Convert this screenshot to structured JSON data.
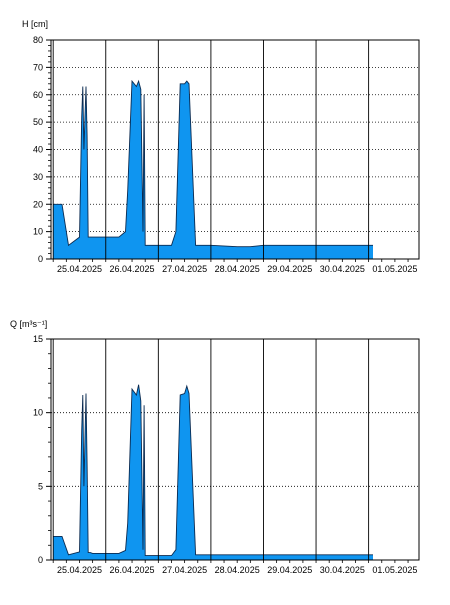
{
  "colors": {
    "fill": "#0f95f0",
    "outline": "#0a2a50",
    "axis": "#000000",
    "grid": "#000000"
  },
  "chart_data": [
    {
      "type": "area",
      "ylabel": "H [cm]",
      "ylim": [
        0,
        80
      ],
      "yticks": [
        "0",
        "10",
        "20",
        "30",
        "40",
        "50",
        "60",
        "70",
        "80"
      ],
      "xlim": [
        "2025-04-24T23:00",
        "2025-05-01T23:00"
      ],
      "xticks": [
        {
          "date": "2025-04-25T12:00",
          "label": "25.04.2025"
        },
        {
          "date": "2025-04-26T12:00",
          "label": "26.04.2025"
        },
        {
          "date": "2025-04-27T12:00",
          "label": "27.04.2025"
        },
        {
          "date": "2025-04-28T12:00",
          "label": "28.04.2025"
        },
        {
          "date": "2025-04-29T12:00",
          "label": "29.04.2025"
        },
        {
          "date": "2025-04-30T12:00",
          "label": "30.04.2025"
        },
        {
          "date": "2025-05-01T12:00",
          "label": "01.05.2025"
        }
      ],
      "grid": "vertical solid at day boundaries, horizontal dotted",
      "series": [
        {
          "x": [
            "2025-04-25T00:00",
            "2025-04-25T04:00",
            "2025-04-25T07:00",
            "2025-04-25T12:00",
            "2025-04-25T13:00",
            "2025-04-25T13:30",
            "2025-04-25T14:00",
            "2025-04-25T15:00",
            "2025-04-25T15:30",
            "2025-04-25T16:00",
            "2025-04-25T17:00",
            "2025-04-25T18:00",
            "2025-04-26T00:00",
            "2025-04-26T06:00",
            "2025-04-26T09:00",
            "2025-04-26T10:00",
            "2025-04-26T12:00",
            "2025-04-26T14:00",
            "2025-04-26T15:00",
            "2025-04-26T16:00",
            "2025-04-26T17:00",
            "2025-04-26T17:30",
            "2025-04-26T18:00",
            "2025-04-26T20:00",
            "2025-04-27T00:00",
            "2025-04-27T04:00",
            "2025-04-27T06:00",
            "2025-04-27T08:00",
            "2025-04-27T10:00",
            "2025-04-27T12:00",
            "2025-04-27T13:00",
            "2025-04-27T14:00",
            "2025-04-27T17:00",
            "2025-04-28T00:00",
            "2025-04-28T12:00",
            "2025-04-28T18:00",
            "2025-04-29T00:00",
            "2025-04-29T12:00",
            "2025-04-30T00:00",
            "2025-04-30T12:00",
            "2025-05-01T00:00",
            "2025-05-01T02:00"
          ],
          "values": [
            20,
            20,
            5,
            8,
            52,
            63,
            40,
            63,
            45,
            8,
            8,
            8,
            8,
            8,
            10,
            25,
            65,
            63,
            65,
            62,
            10,
            60,
            5,
            5,
            5,
            5,
            5,
            10,
            64,
            64,
            65,
            64,
            5,
            5,
            4.5,
            4.5,
            5,
            5,
            5,
            5,
            5,
            5
          ]
        }
      ]
    },
    {
      "type": "area",
      "ylabel": "Q [m³s⁻¹]",
      "ylim": [
        0,
        15
      ],
      "yticks": [
        "0",
        "5",
        "10",
        "15"
      ],
      "xlim": [
        "2025-04-24T23:00",
        "2025-05-01T23:00"
      ],
      "xticks": [
        {
          "date": "2025-04-25T12:00",
          "label": "25.04.2025"
        },
        {
          "date": "2025-04-26T12:00",
          "label": "26.04.2025"
        },
        {
          "date": "2025-04-27T12:00",
          "label": "27.04.2025"
        },
        {
          "date": "2025-04-28T12:00",
          "label": "28.04.2025"
        },
        {
          "date": "2025-04-29T12:00",
          "label": "29.04.2025"
        },
        {
          "date": "2025-04-30T12:00",
          "label": "30.04.2025"
        },
        {
          "date": "2025-05-01T12:00",
          "label": "01.05.2025"
        }
      ],
      "grid": "vertical solid at day boundaries, horizontal dotted",
      "series": [
        {
          "x": [
            "2025-04-25T00:00",
            "2025-04-25T04:00",
            "2025-04-25T07:00",
            "2025-04-25T12:00",
            "2025-04-25T13:00",
            "2025-04-25T13:30",
            "2025-04-25T14:00",
            "2025-04-25T15:00",
            "2025-04-25T15:30",
            "2025-04-25T16:00",
            "2025-04-25T17:00",
            "2025-04-25T18:00",
            "2025-04-26T00:00",
            "2025-04-26T06:00",
            "2025-04-26T09:00",
            "2025-04-26T10:00",
            "2025-04-26T12:00",
            "2025-04-26T14:00",
            "2025-04-26T15:00",
            "2025-04-26T16:00",
            "2025-04-26T17:00",
            "2025-04-26T17:30",
            "2025-04-26T18:00",
            "2025-04-26T20:00",
            "2025-04-27T00:00",
            "2025-04-27T04:00",
            "2025-04-27T06:00",
            "2025-04-27T08:00",
            "2025-04-27T10:00",
            "2025-04-27T12:00",
            "2025-04-27T13:00",
            "2025-04-27T14:00",
            "2025-04-27T17:00",
            "2025-04-28T00:00",
            "2025-04-28T12:00",
            "2025-04-28T18:00",
            "2025-04-29T00:00",
            "2025-04-29T12:00",
            "2025-04-30T00:00",
            "2025-04-30T12:00",
            "2025-05-01T00:00",
            "2025-05-01T02:00"
          ],
          "values": [
            1.6,
            1.6,
            0.35,
            0.55,
            8.8,
            11.2,
            5.0,
            11.3,
            6.5,
            0.5,
            0.5,
            0.45,
            0.45,
            0.45,
            0.65,
            2.5,
            11.6,
            11.2,
            11.9,
            10.8,
            0.7,
            10.5,
            0.3,
            0.3,
            0.3,
            0.3,
            0.3,
            0.7,
            11.2,
            11.3,
            11.8,
            11.3,
            0.35,
            0.35,
            0.35,
            0.35,
            0.35,
            0.35,
            0.35,
            0.35,
            0.35,
            0.35
          ]
        }
      ]
    }
  ]
}
